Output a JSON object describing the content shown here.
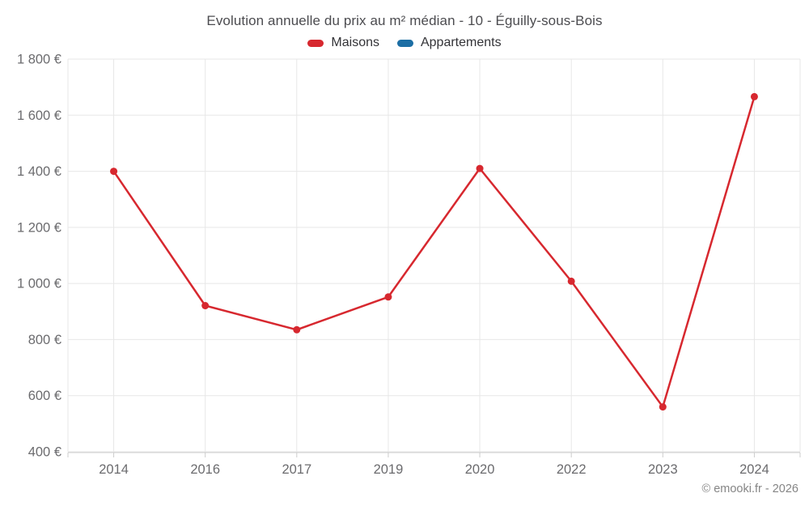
{
  "chart_data": {
    "type": "line",
    "title": "Evolution annuelle du prix au m² médian - 10 - Éguilly-sous-Bois",
    "categories": [
      "2014",
      "2016",
      "2017",
      "2019",
      "2020",
      "2022",
      "2023",
      "2024"
    ],
    "series": [
      {
        "name": "Maisons",
        "color": "#d7282f",
        "values": [
          1400,
          921,
          835,
          952,
          1410,
          1008,
          560,
          1666
        ]
      },
      {
        "name": "Appartements",
        "color": "#1c6ea4",
        "values": []
      }
    ],
    "xlabel": "",
    "ylabel": "",
    "ylim": [
      400,
      1800
    ],
    "ytick_step": 200,
    "ytick_labels": [
      "400 €",
      "600 €",
      "800 €",
      "1 000 €",
      "1 200 €",
      "1 400 €",
      "1 600 €",
      "1 800 €"
    ],
    "yvalue_suffix": " €",
    "grid": true,
    "legend_position": "top-center",
    "credits": "© emooki.fr - 2026",
    "colors": {
      "grid": "#e7e7e7",
      "axis_line": "#cccccc",
      "tick": "#cccccc",
      "axis_label": "#6b6b6e",
      "title": "#4c4c50",
      "credits": "#858585"
    }
  }
}
